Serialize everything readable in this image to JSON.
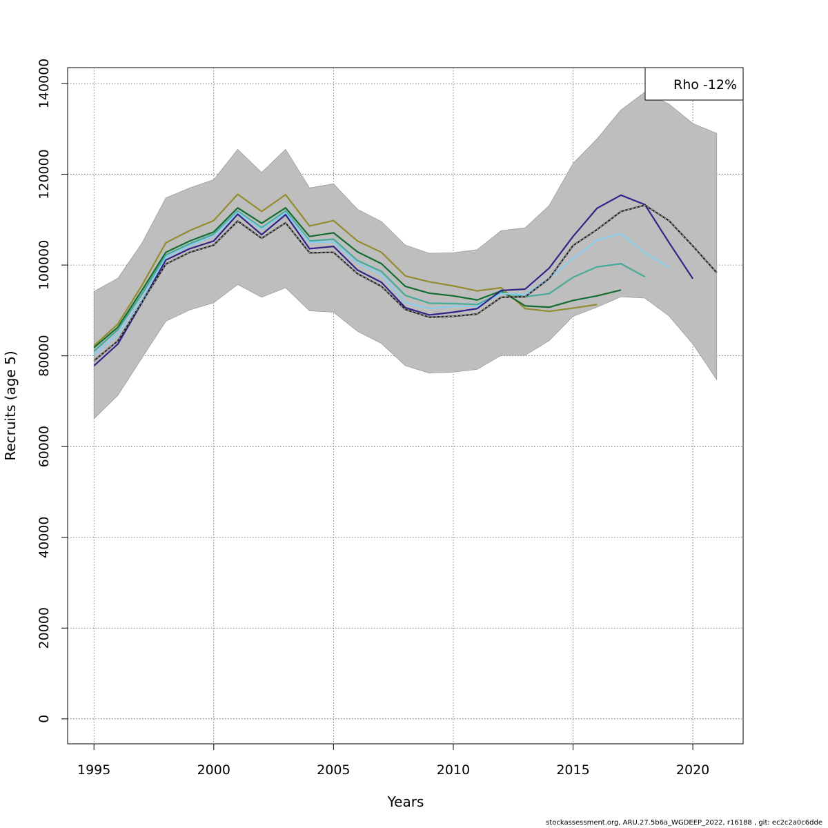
{
  "chart_data": {
    "type": "line",
    "xlabel": "Years",
    "ylabel": "Recruits (age 5)",
    "xlim": [
      1993.9,
      2022.1
    ],
    "ylim": [
      -5500,
      143500
    ],
    "x_ticks": [
      1995,
      2000,
      2005,
      2010,
      2015,
      2020
    ],
    "y_ticks": [
      0,
      20000,
      40000,
      60000,
      80000,
      100000,
      120000,
      140000
    ],
    "grid": true,
    "legend": {
      "position": "top-right",
      "text": "Rho -12%"
    },
    "band": {
      "x": [
        1995,
        1996,
        1997,
        1998,
        1999,
        2000,
        2001,
        2002,
        2003,
        2004,
        2005,
        2006,
        2007,
        2008,
        2009,
        2010,
        2011,
        2012,
        2013,
        2014,
        2015,
        2016,
        2017,
        2018,
        2019,
        2020,
        2021
      ],
      "upper": [
        94200,
        97100,
        104800,
        114800,
        117000,
        118800,
        125500,
        120400,
        125500,
        117000,
        117900,
        112300,
        109600,
        104400,
        102600,
        102700,
        103400,
        107600,
        108200,
        113100,
        122400,
        127800,
        134200,
        138100,
        135500,
        131200,
        129000
      ],
      "lower": [
        66100,
        71300,
        79500,
        87600,
        90100,
        91700,
        95700,
        92900,
        95000,
        89900,
        89600,
        85400,
        82700,
        77800,
        76200,
        76400,
        77000,
        80100,
        80100,
        83300,
        88700,
        90700,
        93000,
        92700,
        88800,
        82600,
        74700
      ]
    },
    "series": [
      {
        "color": "#948b2c",
        "x": [
          1995,
          1996,
          1997,
          1998,
          1999,
          2000,
          2001,
          2002,
          2003,
          2004,
          2005,
          2006,
          2007,
          2008,
          2009,
          2010,
          2011,
          2012,
          2013,
          2014,
          2015,
          2016
        ],
        "values": [
          82200,
          87000,
          95500,
          104900,
          107600,
          109800,
          115600,
          111800,
          115500,
          108600,
          109800,
          105300,
          102800,
          97600,
          96300,
          95400,
          94300,
          95000,
          90400,
          89800,
          90500,
          91300
        ]
      },
      {
        "color": "#116c2f",
        "x": [
          1995,
          1996,
          1997,
          1998,
          1999,
          2000,
          2001,
          2002,
          2003,
          2004,
          2005,
          2006,
          2007,
          2008,
          2009,
          2010,
          2011,
          2012,
          2013,
          2014,
          2015,
          2016,
          2017
        ],
        "values": [
          81800,
          86300,
          94400,
          102800,
          105300,
          107300,
          112600,
          109200,
          112600,
          106300,
          107100,
          102900,
          100300,
          95300,
          93800,
          93200,
          92300,
          94300,
          91000,
          90700,
          92200,
          93200,
          94500
        ]
      },
      {
        "color": "#44aa99",
        "x": [
          1995,
          1996,
          1997,
          1998,
          1999,
          2000,
          2001,
          2002,
          2003,
          2004,
          2005,
          2006,
          2007,
          2008,
          2009,
          2010,
          2011,
          2012,
          2013,
          2014,
          2015,
          2016,
          2017,
          2018
        ],
        "values": [
          81000,
          85800,
          93600,
          102200,
          104700,
          106800,
          111900,
          108200,
          111900,
          105300,
          105700,
          101000,
          98600,
          93300,
          91600,
          91500,
          91300,
          93900,
          93000,
          93700,
          97300,
          99600,
          100300,
          97400
        ]
      },
      {
        "color": "#88ccee",
        "x": [
          1995,
          1996,
          1997,
          1998,
          1999,
          2000,
          2001,
          2002,
          2003,
          2004,
          2005,
          2006,
          2007,
          2008,
          2009,
          2010,
          2011,
          2012,
          2013,
          2014,
          2015,
          2016,
          2017,
          2018,
          2019
        ],
        "values": [
          80200,
          84800,
          92400,
          101700,
          104300,
          106400,
          111600,
          107900,
          111500,
          105000,
          105100,
          100400,
          97900,
          91700,
          90400,
          90900,
          90900,
          93700,
          93500,
          97100,
          101400,
          105500,
          106900,
          102700,
          99500
        ]
      },
      {
        "color": "#332288",
        "x": [
          1995,
          1996,
          1997,
          1998,
          1999,
          2000,
          2001,
          2002,
          2003,
          2004,
          2005,
          2006,
          2007,
          2008,
          2009,
          2010,
          2011,
          2012,
          2013,
          2014,
          2015,
          2016,
          2017,
          2018,
          2019,
          2020
        ],
        "values": [
          77800,
          82600,
          91700,
          101100,
          103600,
          105300,
          111200,
          106700,
          111100,
          103600,
          104100,
          98900,
          96200,
          90600,
          89000,
          89600,
          90400,
          94400,
          94700,
          99300,
          106300,
          112500,
          115400,
          113300,
          105000,
          97000
        ]
      },
      {
        "color": "#222222",
        "dashed_overlay": true,
        "x": [
          1995,
          1996,
          1997,
          1998,
          1999,
          2000,
          2001,
          2002,
          2003,
          2004,
          2005,
          2006,
          2007,
          2008,
          2009,
          2010,
          2011,
          2012,
          2013,
          2014,
          2015,
          2016,
          2017,
          2018,
          2019,
          2020,
          2021
        ],
        "values": [
          78900,
          83300,
          91800,
          100200,
          102800,
          104400,
          109700,
          105900,
          109300,
          102700,
          102800,
          98100,
          95300,
          90200,
          88500,
          88700,
          89200,
          92900,
          93000,
          97000,
          104300,
          107800,
          111800,
          113200,
          109800,
          104200,
          98300
        ]
      }
    ]
  },
  "footer": "stockassessment.org, ARU.27.5b6a_WGDEEP_2022, r16188 , git: ec2c2a0c6dde"
}
